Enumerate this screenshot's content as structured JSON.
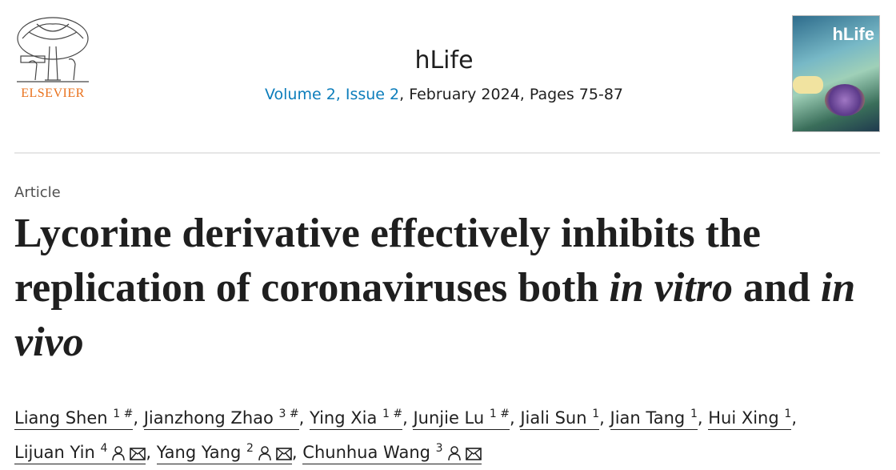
{
  "publisher": {
    "name": "ELSEVIER",
    "accent": "#e9711c"
  },
  "journal": {
    "title": "hLife",
    "volume_issue": "Volume 2, Issue 2",
    "rest": ", February 2024, Pages 75-87",
    "link_color": "#0c7dbb"
  },
  "cover": {
    "title": "hLife"
  },
  "article": {
    "type": "Article",
    "title_parts": [
      "Lycorine derivative effectively inhibits the replication of coronaviruses both ",
      "in vitro",
      " and ",
      "in vivo"
    ]
  },
  "authors": [
    {
      "name": "Liang Shen",
      "sup": "1 #"
    },
    {
      "name": "Jianzhong Zhao",
      "sup": "3 #"
    },
    {
      "name": "Ying Xia",
      "sup": "1 #"
    },
    {
      "name": "Junjie Lu",
      "sup": "1 #"
    },
    {
      "name": "Jiali Sun",
      "sup": "1"
    },
    {
      "name": "Jian Tang",
      "sup": "1"
    },
    {
      "name": "Hui Xing",
      "sup": "1"
    },
    {
      "name": "Lijuan Yin",
      "sup": "4",
      "icons": [
        "person-icon",
        "envelope-icon"
      ]
    },
    {
      "name": "Yang Yang",
      "sup": "2",
      "icons": [
        "person-icon",
        "envelope-icon"
      ]
    },
    {
      "name": "Chunhua Wang",
      "sup": "3",
      "icons": [
        "person-icon",
        "envelope-icon"
      ]
    }
  ]
}
